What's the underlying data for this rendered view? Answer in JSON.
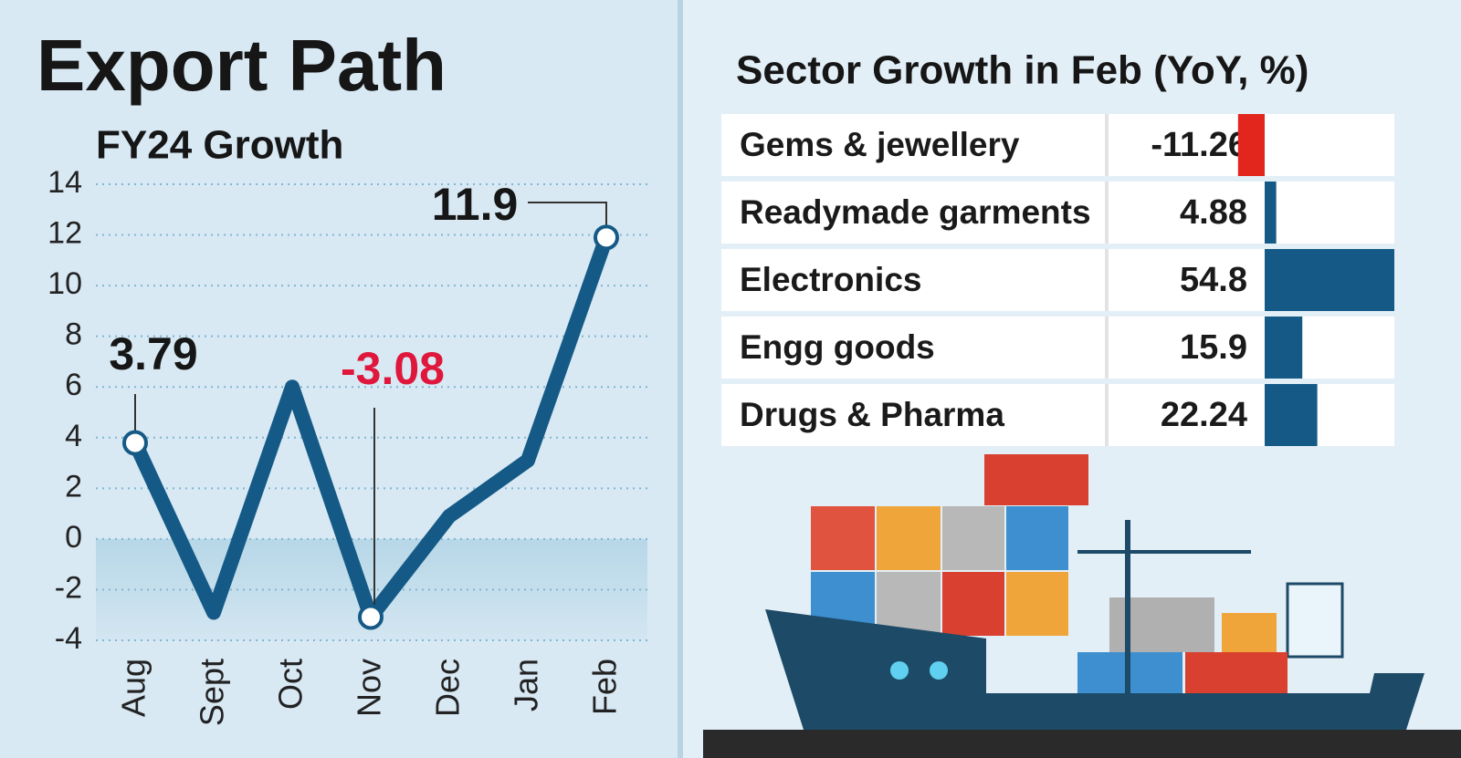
{
  "chart_data": [
    {
      "type": "line",
      "title": "Export Path",
      "subtitle": "FY24 Growth",
      "categories": [
        "Aug",
        "Sept",
        "Oct",
        "Nov",
        "Dec",
        "Jan",
        "Feb"
      ],
      "values": [
        3.79,
        -2.9,
        6.0,
        -3.08,
        0.9,
        3.1,
        11.9
      ],
      "value_labels": [
        "3.79",
        null,
        null,
        "-3.08",
        null,
        null,
        "11.9"
      ],
      "color": "#155a86",
      "negative_color": "#e0173c",
      "ylim": [
        -4,
        14
      ],
      "yticks": [
        -4,
        -2,
        0,
        2,
        4,
        6,
        8,
        10,
        12,
        14
      ],
      "grid": true
    },
    {
      "type": "bar-table",
      "title": "Sector Growth in Feb (YoY, %)",
      "categories": [
        "Gems & jewellery",
        "Readymade garments",
        "Electronics",
        "Engg goods",
        "Drugs & Pharma"
      ],
      "values": [
        -11.26,
        4.88,
        54.8,
        15.9,
        22.24
      ],
      "color": "#155a86",
      "negative_color": "#e2261d"
    }
  ]
}
